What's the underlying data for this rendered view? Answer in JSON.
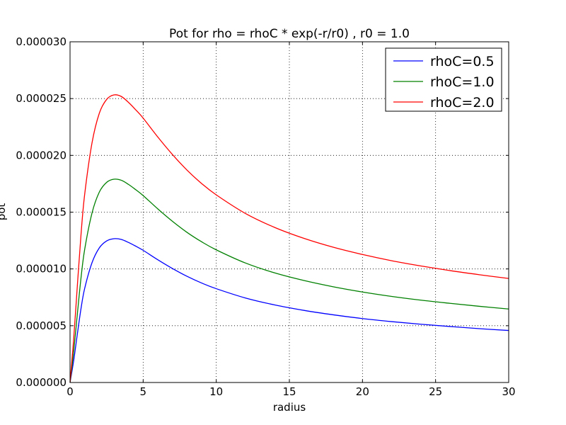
{
  "chart_data": {
    "type": "line",
    "title": "Pot for rho = rhoC * exp(-r/r0) , r0 =   1.0",
    "xlabel": "radius",
    "ylabel": "pot",
    "xlim": [
      0,
      30
    ],
    "ylim": [
      0,
      3e-05
    ],
    "x_ticks": [
      0,
      5,
      10,
      15,
      20,
      25,
      30
    ],
    "x_tick_labels": [
      "0",
      "5",
      "10",
      "15",
      "20",
      "25",
      "30"
    ],
    "y_ticks": [
      0,
      5e-06,
      1e-05,
      1.5e-05,
      2e-05,
      2.5e-05,
      3e-05
    ],
    "y_tick_labels": [
      "0.000000",
      "0.000005",
      "0.000010",
      "0.000015",
      "0.000020",
      "0.000025",
      "0.000030"
    ],
    "grid": true,
    "legend_position": "top-right",
    "x": [
      0,
      0.25,
      0.5,
      0.75,
      1,
      1.5,
      2,
      2.5,
      3,
      3.5,
      4,
      4.5,
      5,
      6,
      7,
      8,
      9,
      10,
      12,
      14,
      16,
      18,
      20,
      22,
      24,
      26,
      28,
      30
    ],
    "series": [
      {
        "name": "rhoC=0.5",
        "color": "#0000ff",
        "values": [
          0,
          1.93e-06,
          4.27e-06,
          6.51e-06,
          8.28e-06,
          1.054e-05,
          1.185e-05,
          1.246e-05,
          1.266e-05,
          1.26e-05,
          1.233e-05,
          1.2e-05,
          1.164e-05,
          1.081e-05,
          1.004e-05,
          9.35e-06,
          8.76e-06,
          8.26e-06,
          7.44e-06,
          6.83e-06,
          6.35e-06,
          5.96e-06,
          5.63e-06,
          5.36e-06,
          5.13e-06,
          4.93e-06,
          4.74e-06,
          4.58e-06
        ]
      },
      {
        "name": "rhoC=1.0",
        "color": "#008000",
        "values": [
          0,
          2.73e-06,
          6.03e-06,
          9.21e-06,
          1.171e-05,
          1.491e-05,
          1.676e-05,
          1.762e-05,
          1.79e-05,
          1.781e-05,
          1.744e-05,
          1.697e-05,
          1.646e-05,
          1.529e-05,
          1.42e-05,
          1.322e-05,
          1.239e-05,
          1.168e-05,
          1.052e-05,
          9.65e-06,
          8.98e-06,
          8.43e-06,
          7.97e-06,
          7.58e-06,
          7.25e-06,
          6.97e-06,
          6.71e-06,
          6.47e-06
        ]
      },
      {
        "name": "rhoC=2.0",
        "color": "#ff0000",
        "values": [
          0,
          3.86e-06,
          8.53e-06,
          1.302e-05,
          1.656e-05,
          2.108e-05,
          2.37e-05,
          2.492e-05,
          2.532e-05,
          2.519e-05,
          2.466e-05,
          2.4e-05,
          2.328e-05,
          2.162e-05,
          2.008e-05,
          1.87e-05,
          1.752e-05,
          1.652e-05,
          1.488e-05,
          1.365e-05,
          1.269e-05,
          1.191e-05,
          1.127e-05,
          1.072e-05,
          1.026e-05,
          9.85e-06,
          9.49e-06,
          9.16e-06
        ]
      }
    ]
  }
}
